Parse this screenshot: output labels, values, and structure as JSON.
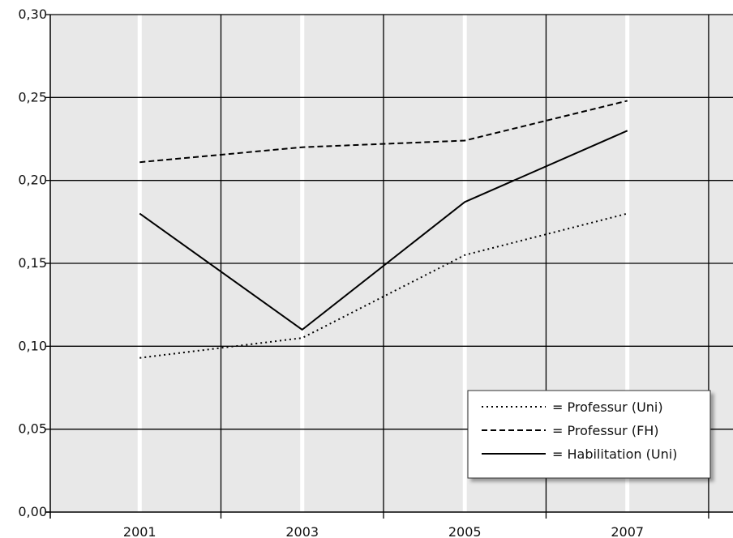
{
  "chart_data": {
    "type": "line",
    "title": "",
    "xlabel": "",
    "ylabel": "",
    "x": [
      2001,
      2003,
      2005,
      2007
    ],
    "x_tick_labels": [
      "2001",
      "2003",
      "2005",
      "2007"
    ],
    "y_tick_labels": [
      "0,00",
      "0,05",
      "0,10",
      "0,15",
      "0,20",
      "0,25",
      "0,30"
    ],
    "ylim": [
      0,
      0.3
    ],
    "xlim": [
      1999.9,
      2008.3
    ],
    "grid": true,
    "legend_position": "bottom-right",
    "colors": {
      "plot_background": "#e8e8e8",
      "grid_major": "#000000",
      "grid_minor": "#ffffff",
      "line": "#000000"
    },
    "series": [
      {
        "name": "= Professur (Uni)",
        "style": "dotted",
        "values": [
          0.093,
          0.105,
          0.155,
          0.18
        ]
      },
      {
        "name": "= Professur (FH)",
        "style": "dashed",
        "values": [
          0.211,
          0.22,
          0.224,
          0.248
        ]
      },
      {
        "name": "= Habilitation (Uni)",
        "style": "solid",
        "values": [
          0.18,
          0.11,
          0.187,
          0.23
        ]
      }
    ]
  }
}
